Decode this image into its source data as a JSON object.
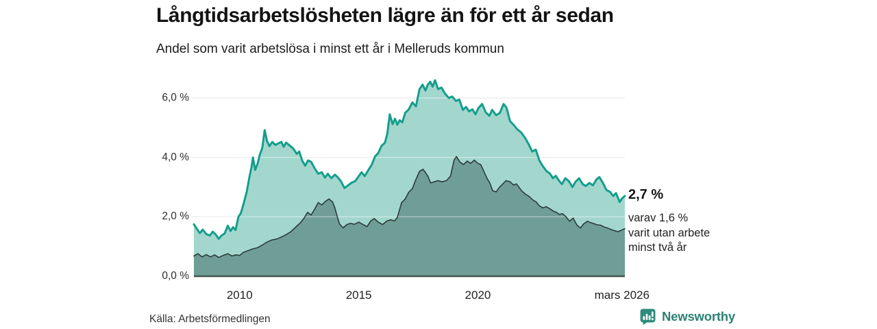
{
  "header": {
    "title": "Långtidsarbetslösheten lägre än för ett år sedan",
    "subtitle": "Andel som varit arbetslösa i minst ett år i Melleruds kommun"
  },
  "annotation": {
    "value": "2,7 %",
    "detail_lines": [
      "varav 1,6 %",
      "varit utan arbete",
      "minst två år"
    ]
  },
  "footer": {
    "source": "Källa: Arbetsförmedlingen",
    "brand": "Newsworthy"
  },
  "colors": {
    "teal_line": "#149e8c",
    "light_fill": "#a3d7cd",
    "dark_fill": "#6f9e96",
    "dark_line": "#2b3b38",
    "baseline": "#42544f",
    "gridline": "#e4e4e4",
    "grid_overlay": "rgba(255,255,255,0.42)",
    "brand_teal": "#2b8173",
    "text_dark": "#141414"
  },
  "chart_data": {
    "type": "area",
    "title": "Långtidsarbetslösheten lägre än för ett år sedan",
    "subtitle": "Andel som varit arbetslösa i minst ett år i Melleruds kommun",
    "xlabel": "",
    "ylabel": "",
    "grid": true,
    "legend": "none",
    "x_range": [
      2008.08,
      2026.17
    ],
    "ylim": [
      0,
      6.8
    ],
    "y_ticks": [
      {
        "label": "0,0 %",
        "v": 0
      },
      {
        "label": "2,0 %",
        "v": 2
      },
      {
        "label": "4,0 %",
        "v": 4
      },
      {
        "label": "6,0 %",
        "v": 6
      }
    ],
    "x_ticks": [
      {
        "label": "2010",
        "t": 2010.0
      },
      {
        "label": "2015",
        "t": 2015.0
      },
      {
        "label": "2020",
        "t": 2020.0
      },
      {
        "label": "mars 2026",
        "t": 2026.05
      }
    ],
    "end_labels": {
      "minst_ett_ar": "2,7 %",
      "minst_tva_ar": "1,6 %"
    },
    "series": [
      {
        "name": "minst ett år",
        "line_color": "#149e8c",
        "fill_color": "#a3d7cd",
        "line_width": 3,
        "points": [
          [
            2008.08,
            1.75
          ],
          [
            2008.2,
            1.6
          ],
          [
            2008.33,
            1.45
          ],
          [
            2008.45,
            1.57
          ],
          [
            2008.6,
            1.42
          ],
          [
            2008.75,
            1.37
          ],
          [
            2008.87,
            1.5
          ],
          [
            2009.0,
            1.4
          ],
          [
            2009.12,
            1.26
          ],
          [
            2009.25,
            1.38
          ],
          [
            2009.37,
            1.44
          ],
          [
            2009.5,
            1.7
          ],
          [
            2009.62,
            1.52
          ],
          [
            2009.72,
            1.65
          ],
          [
            2009.83,
            1.56
          ],
          [
            2009.95,
            2.0
          ],
          [
            2010.05,
            2.12
          ],
          [
            2010.16,
            2.42
          ],
          [
            2010.3,
            2.85
          ],
          [
            2010.4,
            3.3
          ],
          [
            2010.5,
            3.68
          ],
          [
            2010.56,
            4.0
          ],
          [
            2010.65,
            3.58
          ],
          [
            2010.75,
            3.78
          ],
          [
            2010.85,
            4.1
          ],
          [
            2010.95,
            4.32
          ],
          [
            2011.05,
            4.92
          ],
          [
            2011.15,
            4.55
          ],
          [
            2011.25,
            4.38
          ],
          [
            2011.37,
            4.52
          ],
          [
            2011.5,
            4.42
          ],
          [
            2011.62,
            4.47
          ],
          [
            2011.75,
            4.52
          ],
          [
            2011.85,
            4.36
          ],
          [
            2011.95,
            4.5
          ],
          [
            2012.1,
            4.4
          ],
          [
            2012.25,
            4.3
          ],
          [
            2012.4,
            4.12
          ],
          [
            2012.5,
            4.2
          ],
          [
            2012.62,
            3.9
          ],
          [
            2012.75,
            3.72
          ],
          [
            2012.87,
            3.9
          ],
          [
            2013.0,
            3.85
          ],
          [
            2013.15,
            3.63
          ],
          [
            2013.3,
            3.45
          ],
          [
            2013.45,
            3.5
          ],
          [
            2013.58,
            3.32
          ],
          [
            2013.7,
            3.45
          ],
          [
            2013.85,
            3.3
          ],
          [
            2014.0,
            3.42
          ],
          [
            2014.12,
            3.33
          ],
          [
            2014.25,
            3.2
          ],
          [
            2014.4,
            2.97
          ],
          [
            2014.55,
            3.06
          ],
          [
            2014.7,
            3.15
          ],
          [
            2014.85,
            3.2
          ],
          [
            2015.0,
            3.37
          ],
          [
            2015.12,
            3.5
          ],
          [
            2015.25,
            3.37
          ],
          [
            2015.4,
            3.57
          ],
          [
            2015.55,
            3.76
          ],
          [
            2015.68,
            4.03
          ],
          [
            2015.82,
            4.15
          ],
          [
            2015.95,
            4.38
          ],
          [
            2016.1,
            4.5
          ],
          [
            2016.2,
            4.8
          ],
          [
            2016.3,
            5.45
          ],
          [
            2016.42,
            5.12
          ],
          [
            2016.52,
            5.3
          ],
          [
            2016.62,
            5.1
          ],
          [
            2016.72,
            5.25
          ],
          [
            2016.83,
            5.18
          ],
          [
            2016.95,
            5.5
          ],
          [
            2017.1,
            5.62
          ],
          [
            2017.25,
            5.85
          ],
          [
            2017.4,
            5.72
          ],
          [
            2017.55,
            6.3
          ],
          [
            2017.68,
            6.45
          ],
          [
            2017.8,
            6.25
          ],
          [
            2017.9,
            6.45
          ],
          [
            2018.0,
            6.55
          ],
          [
            2018.1,
            6.38
          ],
          [
            2018.2,
            6.6
          ],
          [
            2018.33,
            6.3
          ],
          [
            2018.47,
            6.35
          ],
          [
            2018.62,
            6.15
          ],
          [
            2018.78,
            6.0
          ],
          [
            2018.92,
            6.05
          ],
          [
            2019.08,
            5.9
          ],
          [
            2019.22,
            5.95
          ],
          [
            2019.37,
            5.6
          ],
          [
            2019.5,
            5.7
          ],
          [
            2019.63,
            5.55
          ],
          [
            2019.77,
            5.62
          ],
          [
            2019.9,
            5.45
          ],
          [
            2020.02,
            5.66
          ],
          [
            2020.18,
            5.8
          ],
          [
            2020.33,
            5.52
          ],
          [
            2020.48,
            5.4
          ],
          [
            2020.6,
            5.6
          ],
          [
            2020.77,
            5.42
          ],
          [
            2020.92,
            5.5
          ],
          [
            2021.08,
            5.8
          ],
          [
            2021.2,
            5.68
          ],
          [
            2021.35,
            5.22
          ],
          [
            2021.5,
            5.1
          ],
          [
            2021.65,
            4.95
          ],
          [
            2021.82,
            4.84
          ],
          [
            2021.98,
            4.66
          ],
          [
            2022.13,
            4.45
          ],
          [
            2022.28,
            4.2
          ],
          [
            2022.43,
            4.26
          ],
          [
            2022.58,
            3.9
          ],
          [
            2022.73,
            3.7
          ],
          [
            2022.88,
            3.54
          ],
          [
            2023.02,
            3.46
          ],
          [
            2023.15,
            3.3
          ],
          [
            2023.27,
            3.38
          ],
          [
            2023.42,
            3.2
          ],
          [
            2023.53,
            3.1
          ],
          [
            2023.67,
            3.3
          ],
          [
            2023.82,
            3.2
          ],
          [
            2023.97,
            3.0
          ],
          [
            2024.1,
            3.18
          ],
          [
            2024.25,
            3.3
          ],
          [
            2024.4,
            3.1
          ],
          [
            2024.53,
            3.04
          ],
          [
            2024.68,
            3.14
          ],
          [
            2024.83,
            3.06
          ],
          [
            2024.98,
            3.26
          ],
          [
            2025.1,
            3.34
          ],
          [
            2025.25,
            3.14
          ],
          [
            2025.4,
            2.9
          ],
          [
            2025.55,
            2.84
          ],
          [
            2025.68,
            2.7
          ],
          [
            2025.8,
            2.8
          ],
          [
            2025.95,
            2.5
          ],
          [
            2026.05,
            2.62
          ],
          [
            2026.17,
            2.7
          ]
        ]
      },
      {
        "name": "minst två år",
        "line_color": "#2b3b38",
        "fill_color": "#6f9e96",
        "line_width": 1.6,
        "points": [
          [
            2008.08,
            0.68
          ],
          [
            2008.25,
            0.76
          ],
          [
            2008.42,
            0.65
          ],
          [
            2008.6,
            0.73
          ],
          [
            2008.78,
            0.65
          ],
          [
            2008.95,
            0.72
          ],
          [
            2009.12,
            0.63
          ],
          [
            2009.3,
            0.7
          ],
          [
            2009.5,
            0.76
          ],
          [
            2009.68,
            0.68
          ],
          [
            2009.85,
            0.72
          ],
          [
            2010.0,
            0.7
          ],
          [
            2010.15,
            0.8
          ],
          [
            2010.35,
            0.86
          ],
          [
            2010.55,
            0.92
          ],
          [
            2010.75,
            0.96
          ],
          [
            2010.95,
            1.05
          ],
          [
            2011.15,
            1.15
          ],
          [
            2011.35,
            1.22
          ],
          [
            2011.55,
            1.25
          ],
          [
            2011.75,
            1.32
          ],
          [
            2011.95,
            1.4
          ],
          [
            2012.15,
            1.5
          ],
          [
            2012.35,
            1.65
          ],
          [
            2012.55,
            1.8
          ],
          [
            2012.7,
            1.95
          ],
          [
            2012.85,
            2.15
          ],
          [
            2013.0,
            2.06
          ],
          [
            2013.15,
            2.26
          ],
          [
            2013.3,
            2.48
          ],
          [
            2013.45,
            2.4
          ],
          [
            2013.6,
            2.52
          ],
          [
            2013.75,
            2.6
          ],
          [
            2013.9,
            2.5
          ],
          [
            2014.0,
            2.3
          ],
          [
            2014.1,
            2.0
          ],
          [
            2014.2,
            1.75
          ],
          [
            2014.35,
            1.63
          ],
          [
            2014.5,
            1.74
          ],
          [
            2014.65,
            1.78
          ],
          [
            2014.82,
            1.75
          ],
          [
            2015.0,
            1.82
          ],
          [
            2015.18,
            1.74
          ],
          [
            2015.35,
            1.67
          ],
          [
            2015.5,
            1.86
          ],
          [
            2015.65,
            1.94
          ],
          [
            2015.82,
            1.82
          ],
          [
            2016.0,
            1.74
          ],
          [
            2016.18,
            1.86
          ],
          [
            2016.35,
            1.9
          ],
          [
            2016.5,
            1.86
          ],
          [
            2016.62,
            1.98
          ],
          [
            2016.8,
            2.48
          ],
          [
            2016.95,
            2.6
          ],
          [
            2017.1,
            2.83
          ],
          [
            2017.25,
            2.95
          ],
          [
            2017.4,
            3.26
          ],
          [
            2017.55,
            3.53
          ],
          [
            2017.7,
            3.6
          ],
          [
            2017.8,
            3.49
          ],
          [
            2017.9,
            3.37
          ],
          [
            2018.02,
            3.14
          ],
          [
            2018.17,
            3.18
          ],
          [
            2018.32,
            3.22
          ],
          [
            2018.5,
            3.18
          ],
          [
            2018.68,
            3.22
          ],
          [
            2018.85,
            3.37
          ],
          [
            2019.0,
            3.91
          ],
          [
            2019.1,
            4.03
          ],
          [
            2019.25,
            3.84
          ],
          [
            2019.4,
            3.76
          ],
          [
            2019.55,
            3.88
          ],
          [
            2019.7,
            3.8
          ],
          [
            2019.85,
            3.91
          ],
          [
            2020.0,
            3.8
          ],
          [
            2020.12,
            3.76
          ],
          [
            2020.25,
            3.53
          ],
          [
            2020.38,
            3.3
          ],
          [
            2020.5,
            3.14
          ],
          [
            2020.62,
            2.88
          ],
          [
            2020.77,
            2.84
          ],
          [
            2020.9,
            2.99
          ],
          [
            2021.05,
            3.11
          ],
          [
            2021.18,
            3.22
          ],
          [
            2021.35,
            3.18
          ],
          [
            2021.5,
            3.07
          ],
          [
            2021.62,
            3.11
          ],
          [
            2021.83,
            2.88
          ],
          [
            2022.0,
            2.76
          ],
          [
            2022.15,
            2.69
          ],
          [
            2022.3,
            2.57
          ],
          [
            2022.45,
            2.5
          ],
          [
            2022.57,
            2.38
          ],
          [
            2022.72,
            2.3
          ],
          [
            2022.87,
            2.34
          ],
          [
            2023.02,
            2.27
          ],
          [
            2023.17,
            2.19
          ],
          [
            2023.3,
            2.15
          ],
          [
            2023.42,
            2.08
          ],
          [
            2023.55,
            2.11
          ],
          [
            2023.7,
            2.0
          ],
          [
            2023.85,
            1.85
          ],
          [
            2024.0,
            1.96
          ],
          [
            2024.15,
            1.73
          ],
          [
            2024.3,
            1.62
          ],
          [
            2024.45,
            1.77
          ],
          [
            2024.6,
            1.85
          ],
          [
            2024.72,
            1.81
          ],
          [
            2024.87,
            1.77
          ],
          [
            2025.0,
            1.73
          ],
          [
            2025.15,
            1.72
          ],
          [
            2025.3,
            1.66
          ],
          [
            2025.45,
            1.62
          ],
          [
            2025.6,
            1.57
          ],
          [
            2025.75,
            1.53
          ],
          [
            2025.88,
            1.5
          ],
          [
            2026.0,
            1.54
          ],
          [
            2026.1,
            1.58
          ],
          [
            2026.17,
            1.6
          ]
        ]
      }
    ]
  }
}
